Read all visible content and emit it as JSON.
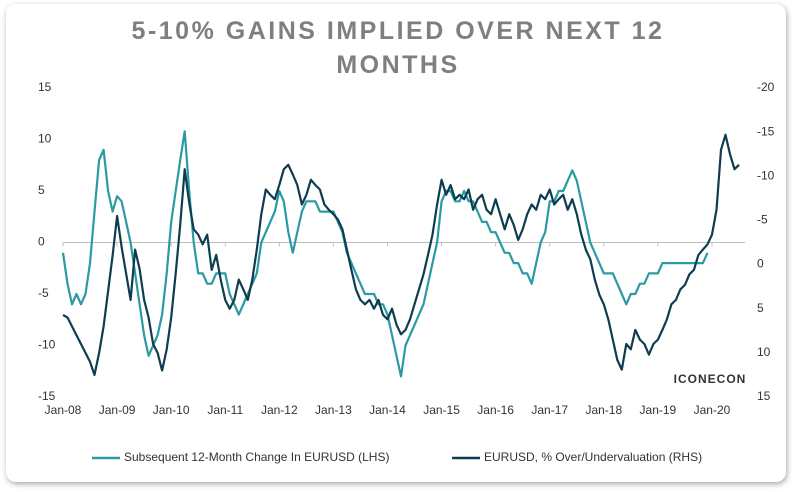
{
  "chart_data": {
    "type": "line",
    "title": "5-10% GAINS IMPLIED OVER NEXT 12 MONTHS",
    "logo": "ICONECON",
    "x": [
      "2008-01",
      "2008-02",
      "2008-03",
      "2008-04",
      "2008-05",
      "2008-06",
      "2008-07",
      "2008-08",
      "2008-09",
      "2008-10",
      "2008-11",
      "2008-12",
      "2009-01",
      "2009-02",
      "2009-03",
      "2009-04",
      "2009-05",
      "2009-06",
      "2009-07",
      "2009-08",
      "2009-09",
      "2009-10",
      "2009-11",
      "2009-12",
      "2010-01",
      "2010-02",
      "2010-03",
      "2010-04",
      "2010-05",
      "2010-06",
      "2010-07",
      "2010-08",
      "2010-09",
      "2010-10",
      "2010-11",
      "2010-12",
      "2011-01",
      "2011-02",
      "2011-03",
      "2011-04",
      "2011-05",
      "2011-06",
      "2011-07",
      "2011-08",
      "2011-09",
      "2011-10",
      "2011-11",
      "2011-12",
      "2012-01",
      "2012-02",
      "2012-03",
      "2012-04",
      "2012-05",
      "2012-06",
      "2012-07",
      "2012-08",
      "2012-09",
      "2012-10",
      "2012-11",
      "2012-12",
      "2013-01",
      "2013-02",
      "2013-03",
      "2013-04",
      "2013-05",
      "2013-06",
      "2013-07",
      "2013-08",
      "2013-09",
      "2013-10",
      "2013-11",
      "2013-12",
      "2014-01",
      "2014-02",
      "2014-03",
      "2014-04",
      "2014-05",
      "2014-06",
      "2014-07",
      "2014-08",
      "2014-09",
      "2014-10",
      "2014-11",
      "2014-12",
      "2015-01",
      "2015-02",
      "2015-03",
      "2015-04",
      "2015-05",
      "2015-06",
      "2015-07",
      "2015-08",
      "2015-09",
      "2015-10",
      "2015-11",
      "2015-12",
      "2016-01",
      "2016-02",
      "2016-03",
      "2016-04",
      "2016-05",
      "2016-06",
      "2016-07",
      "2016-08",
      "2016-09",
      "2016-10",
      "2016-11",
      "2016-12",
      "2017-01",
      "2017-02",
      "2017-03",
      "2017-04",
      "2017-05",
      "2017-06",
      "2017-07",
      "2017-08",
      "2017-09",
      "2017-10",
      "2017-11",
      "2017-12",
      "2018-01",
      "2018-02",
      "2018-03",
      "2018-04",
      "2018-05",
      "2018-06",
      "2018-07",
      "2018-08",
      "2018-09",
      "2018-10",
      "2018-11",
      "2018-12",
      "2019-01",
      "2019-02",
      "2019-03",
      "2019-04",
      "2019-05",
      "2019-06",
      "2019-07",
      "2019-08",
      "2019-09",
      "2019-10",
      "2019-11",
      "2019-12",
      "2020-01",
      "2020-02",
      "2020-03",
      "2020-04",
      "2020-05",
      "2020-06",
      "2020-07"
    ],
    "xlim": [
      "2008-01",
      "2020-07"
    ],
    "xticks": [
      {
        "value": "2008-01",
        "label": "Jan-08"
      },
      {
        "value": "2009-01",
        "label": "Jan-09"
      },
      {
        "value": "2010-01",
        "label": "Jan-10"
      },
      {
        "value": "2011-01",
        "label": "Jan-11"
      },
      {
        "value": "2012-01",
        "label": "Jan-12"
      },
      {
        "value": "2013-01",
        "label": "Jan-13"
      },
      {
        "value": "2014-01",
        "label": "Jan-14"
      },
      {
        "value": "2015-01",
        "label": "Jan-15"
      },
      {
        "value": "2016-01",
        "label": "Jan-16"
      },
      {
        "value": "2017-01",
        "label": "Jan-17"
      },
      {
        "value": "2018-01",
        "label": "Jan-18"
      },
      {
        "value": "2019-01",
        "label": "Jan-19"
      },
      {
        "value": "2020-01",
        "label": "Jan-20"
      }
    ],
    "ylim": [
      -15,
      15
    ],
    "yticks": [
      -15,
      -10,
      -5,
      0,
      5,
      10,
      15
    ],
    "y2lim": [
      15,
      -20
    ],
    "y2ticks": [
      -20,
      -15,
      -10,
      -5,
      0,
      5,
      10,
      15
    ],
    "legend": "bottom",
    "series": [
      {
        "name": "Subsequent 12-Month Change In EURUSD (LHS)",
        "color": "#2a9aa3",
        "axis": "y",
        "values": [
          -1,
          -4,
          -6,
          -5,
          -6,
          -5,
          -2,
          3,
          8,
          9,
          5,
          3,
          4.5,
          4,
          2,
          0,
          -3,
          -6,
          -9,
          -11,
          -10,
          -9,
          -7,
          -3,
          2,
          5,
          8,
          10.8,
          5,
          0,
          -3,
          -3,
          -4,
          -4,
          -3,
          -3,
          -3,
          -5,
          -6,
          -7,
          -6,
          -5,
          -4,
          -3,
          0,
          1,
          2,
          3,
          5,
          4,
          1,
          -1,
          1,
          3,
          4,
          4,
          4,
          3,
          3,
          3,
          3,
          2,
          1,
          -1,
          -2,
          -3,
          -4,
          -5,
          -5,
          -5,
          -6,
          -6,
          -7,
          -9,
          -11,
          -13,
          -10,
          -9,
          -8,
          -7,
          -6,
          -4,
          -2,
          0,
          4,
          5,
          5,
          4,
          4,
          5,
          4,
          4,
          3,
          2,
          2,
          1,
          1,
          0,
          -1,
          -1,
          -2,
          -2,
          -3,
          -3,
          -4,
          -2,
          0,
          1,
          4,
          4,
          5,
          5,
          6,
          7,
          6,
          4,
          2,
          0,
          -1,
          -2,
          -3,
          -3,
          -3,
          -4,
          -5,
          -6,
          -5,
          -5,
          -4,
          -4,
          -3,
          -3,
          -3,
          -2,
          -2,
          -2,
          -2,
          -2,
          -2,
          -2,
          -2,
          -2,
          -2,
          -1,
          null,
          null,
          null,
          null,
          null,
          null,
          null
        ]
      },
      {
        "name": "EURUSD, % Over/Undervaluation (RHS)",
        "color": "#0d3d4f",
        "axis": "y2",
        "values": [
          5.7,
          6,
          7,
          8,
          9,
          10,
          11,
          12.5,
          10,
          7,
          3,
          -1,
          -5.5,
          -2,
          1,
          4,
          -1.7,
          0.5,
          4,
          6,
          9,
          10,
          12,
          9.6,
          6,
          1,
          -4.5,
          -10.8,
          -7,
          -4,
          -3.4,
          -2.3,
          -3.4,
          0.6,
          -1.1,
          1.7,
          4,
          5,
          4,
          1.7,
          2.8,
          4,
          1.7,
          -1.7,
          -5.7,
          -8.5,
          -7.9,
          -7.4,
          -9,
          -10.8,
          -11.3,
          -10.2,
          -9,
          -6.8,
          -7.9,
          -9.6,
          -9,
          -8.5,
          -6.8,
          -6.2,
          -5.7,
          -5.1,
          -4,
          -1.7,
          0.6,
          2.8,
          4,
          4.5,
          4,
          5,
          4,
          5.7,
          6.2,
          5,
          6.8,
          7.9,
          7.4,
          6.2,
          4.5,
          2.8,
          1.1,
          -1.1,
          -3.4,
          -6.8,
          -9.6,
          -7.9,
          -9,
          -7.4,
          -7.9,
          -7.4,
          -8.5,
          -6.2,
          -7.4,
          -7.9,
          -6.2,
          -5.7,
          -7.4,
          -5.7,
          -4,
          -5.7,
          -4.5,
          -2.8,
          -4,
          -5.7,
          -6.8,
          -6.2,
          -7.9,
          -7.4,
          -8.5,
          -6.8,
          -7.4,
          -7.9,
          -6.2,
          -7.4,
          -5.7,
          -3.4,
          -1.7,
          -0.6,
          1.7,
          3.4,
          4.5,
          6.2,
          8.5,
          10.8,
          11.9,
          9,
          9.6,
          7.4,
          8.5,
          9,
          10.2,
          9,
          8.5,
          7.4,
          6.2,
          4.5,
          4,
          2.8,
          2.3,
          1.1,
          0.6,
          -1.1,
          -1.7,
          -2.3,
          -3.4,
          -6.2,
          -13,
          -14.7,
          -12.5,
          -10.8,
          -11.3
        ]
      }
    ]
  }
}
